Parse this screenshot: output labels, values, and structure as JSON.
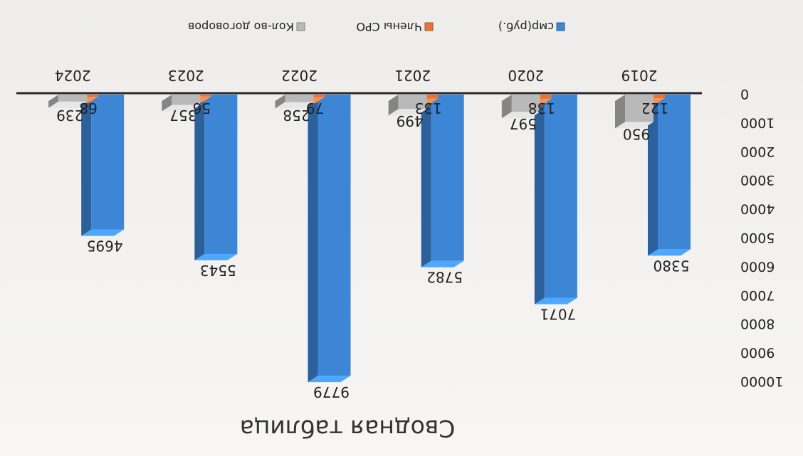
{
  "chart_data": {
    "type": "bar",
    "title": "Сводная таблица",
    "categories": [
      "2019",
      "2020",
      "2021",
      "2022",
      "2023",
      "2024"
    ],
    "series": [
      {
        "name": "смр(руб.)",
        "color": "#3d86d6",
        "values": [
          5380,
          7071,
          5782,
          9779,
          5543,
          4695
        ]
      },
      {
        "name": "Члены СРО",
        "color": "#e8743b",
        "values": [
          122,
          138,
          133,
          79,
          56,
          68
        ]
      },
      {
        "name": "Кол-во договоров",
        "color": "#b9b9b9",
        "values": [
          950,
          597,
          499,
          258,
          357,
          239
        ]
      }
    ],
    "ylim": [
      0,
      10000
    ],
    "yticks": [
      0,
      1000,
      2000,
      3000,
      4000,
      5000,
      6000,
      7000,
      8000,
      9000,
      10000
    ],
    "legend_position": "bottom",
    "grid": false,
    "three_d": true
  }
}
